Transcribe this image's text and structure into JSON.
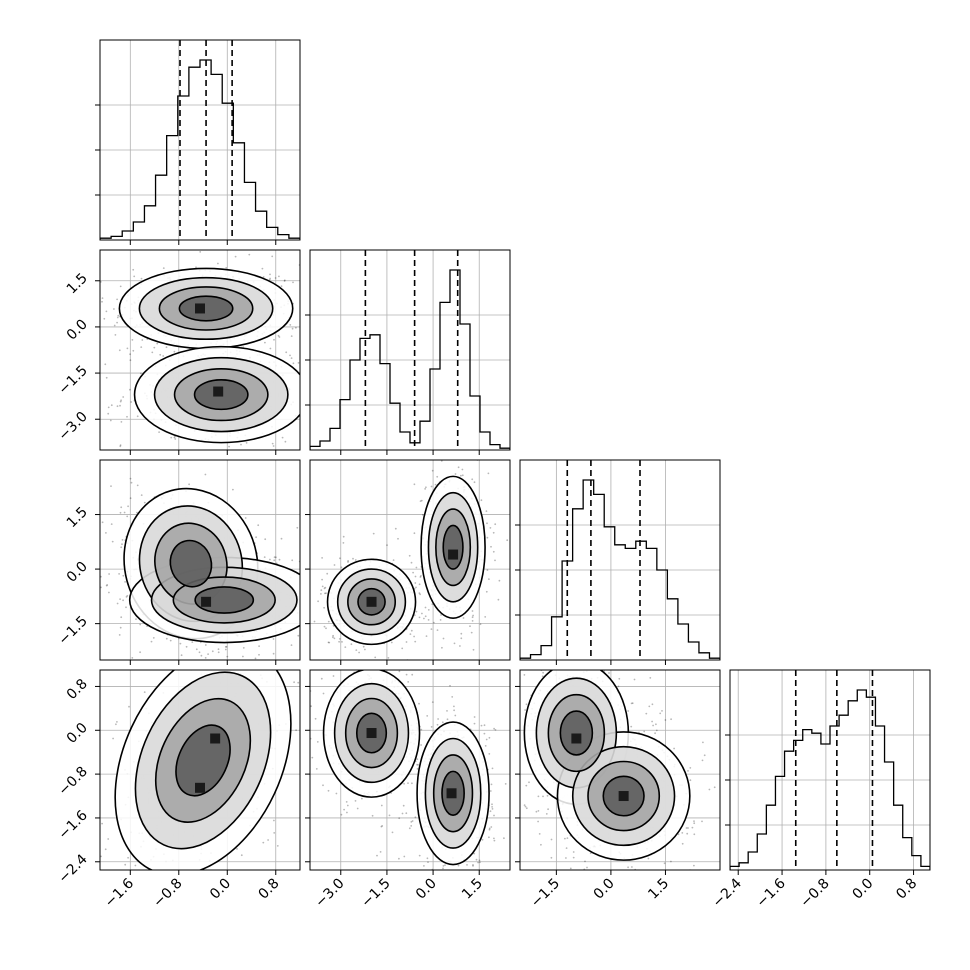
{
  "chart_data": {
    "type": "corner",
    "n_params": 4,
    "colors": {
      "line": "#000000",
      "grid": "#b0b0b0",
      "contour_fill": [
        "#ffffff",
        "#d9d9d9",
        "#a6a6a6",
        "#5e5e5e",
        "#1a1a1a"
      ],
      "scatter": "#000000"
    },
    "grid": true,
    "params": [
      {
        "range": [
          -2.1,
          1.2
        ],
        "ticks": [
          -1.6,
          -0.8,
          0.0,
          0.8
        ],
        "tick_labels": [
          "−1.6",
          "−0.8",
          "0.0",
          "0.8"
        ],
        "quantiles": [
          -0.78,
          -0.35,
          0.08
        ],
        "hist": [
          1,
          2,
          5,
          10,
          19,
          36,
          58,
          80,
          96,
          100,
          92,
          76,
          54,
          32,
          16,
          7,
          3,
          1
        ]
      },
      {
        "range": [
          -4.0,
          2.5
        ],
        "ticks": [
          -3.0,
          -1.5,
          0.0,
          1.5
        ],
        "tick_labels": [
          "−3.0",
          "−1.5",
          "0.0",
          "1.5"
        ],
        "quantiles": [
          -2.2,
          -0.6,
          0.8
        ],
        "hist": [
          2,
          5,
          12,
          28,
          50,
          62,
          64,
          48,
          26,
          10,
          4,
          16,
          45,
          82,
          100,
          70,
          30,
          10,
          3,
          1
        ]
      },
      {
        "range": [
          -2.5,
          3.0
        ],
        "ticks": [
          -1.5,
          0.0,
          1.5
        ],
        "tick_labels": [
          "−1.5",
          "0.0",
          "1.5"
        ],
        "quantiles": [
          -1.2,
          -0.55,
          0.8
        ],
        "hist": [
          1,
          3,
          8,
          24,
          55,
          84,
          100,
          92,
          74,
          64,
          62,
          66,
          62,
          50,
          34,
          20,
          10,
          4,
          1
        ]
      },
      {
        "range": [
          -2.55,
          1.1
        ],
        "ticks": [
          -2.4,
          -1.6,
          -0.8,
          0.0,
          0.8
        ],
        "tick_labels": [
          "−2.4",
          "−1.6",
          "−0.8",
          "0.0",
          "0.8"
        ],
        "quantiles": [
          -1.35,
          -0.6,
          0.05
        ],
        "hist": [
          2,
          4,
          10,
          20,
          36,
          52,
          66,
          72,
          78,
          76,
          70,
          80,
          86,
          94,
          100,
          96,
          80,
          60,
          36,
          18,
          8,
          2
        ]
      }
    ],
    "pairs": [
      {
        "row": 1,
        "col": 0,
        "blobs": [
          {
            "cx": -0.35,
            "cy": 0.6,
            "sx": 0.55,
            "sy": 0.5,
            "rot": 0
          },
          {
            "cx": -0.1,
            "cy": -2.2,
            "sx": 0.55,
            "sy": 0.6,
            "rot": 0
          }
        ],
        "peaks": [
          {
            "x": -0.45,
            "y": 0.6
          },
          {
            "x": -0.15,
            "y": -2.1
          }
        ]
      },
      {
        "row": 2,
        "col": 0,
        "blobs": [
          {
            "cx": -0.6,
            "cy": 0.15,
            "sx": 0.42,
            "sy": 0.8,
            "rot": 15
          },
          {
            "cx": -0.05,
            "cy": -0.85,
            "sx": 0.6,
            "sy": 0.45,
            "rot": 0
          }
        ],
        "peaks": [
          {
            "x": -0.35,
            "y": -0.9
          }
        ]
      },
      {
        "row": 2,
        "col": 1,
        "blobs": [
          {
            "cx": -2.0,
            "cy": -0.9,
            "sx": 0.55,
            "sy": 0.45,
            "rot": 0
          },
          {
            "cx": 0.65,
            "cy": 0.6,
            "sx": 0.4,
            "sy": 0.75,
            "rot": 0
          }
        ],
        "peaks": [
          {
            "x": -2.0,
            "y": -0.9
          },
          {
            "x": 0.65,
            "y": 0.4
          }
        ]
      },
      {
        "row": 3,
        "col": 0,
        "blobs": [
          {
            "cx": -0.4,
            "cy": -0.55,
            "sx": 0.5,
            "sy": 0.85,
            "rot": -25
          }
        ],
        "peaks": [
          {
            "x": -0.2,
            "y": -0.15
          },
          {
            "x": -0.45,
            "y": -1.05
          }
        ]
      },
      {
        "row": 3,
        "col": 1,
        "blobs": [
          {
            "cx": -2.0,
            "cy": -0.05,
            "sx": 0.6,
            "sy": 0.45,
            "rot": 0
          },
          {
            "cx": 0.65,
            "cy": -1.15,
            "sx": 0.45,
            "sy": 0.5,
            "rot": 0
          }
        ],
        "peaks": [
          {
            "x": -2.0,
            "y": -0.05
          },
          {
            "x": 0.6,
            "y": -1.15
          }
        ]
      },
      {
        "row": 3,
        "col": 2,
        "blobs": [
          {
            "cx": -0.95,
            "cy": -0.05,
            "sx": 0.55,
            "sy": 0.5,
            "rot": 0
          },
          {
            "cx": 0.35,
            "cy": -1.2,
            "sx": 0.7,
            "sy": 0.45,
            "rot": 0
          }
        ],
        "peaks": [
          {
            "x": -0.95,
            "y": -0.15
          },
          {
            "x": 0.35,
            "y": -1.2
          }
        ]
      }
    ]
  }
}
